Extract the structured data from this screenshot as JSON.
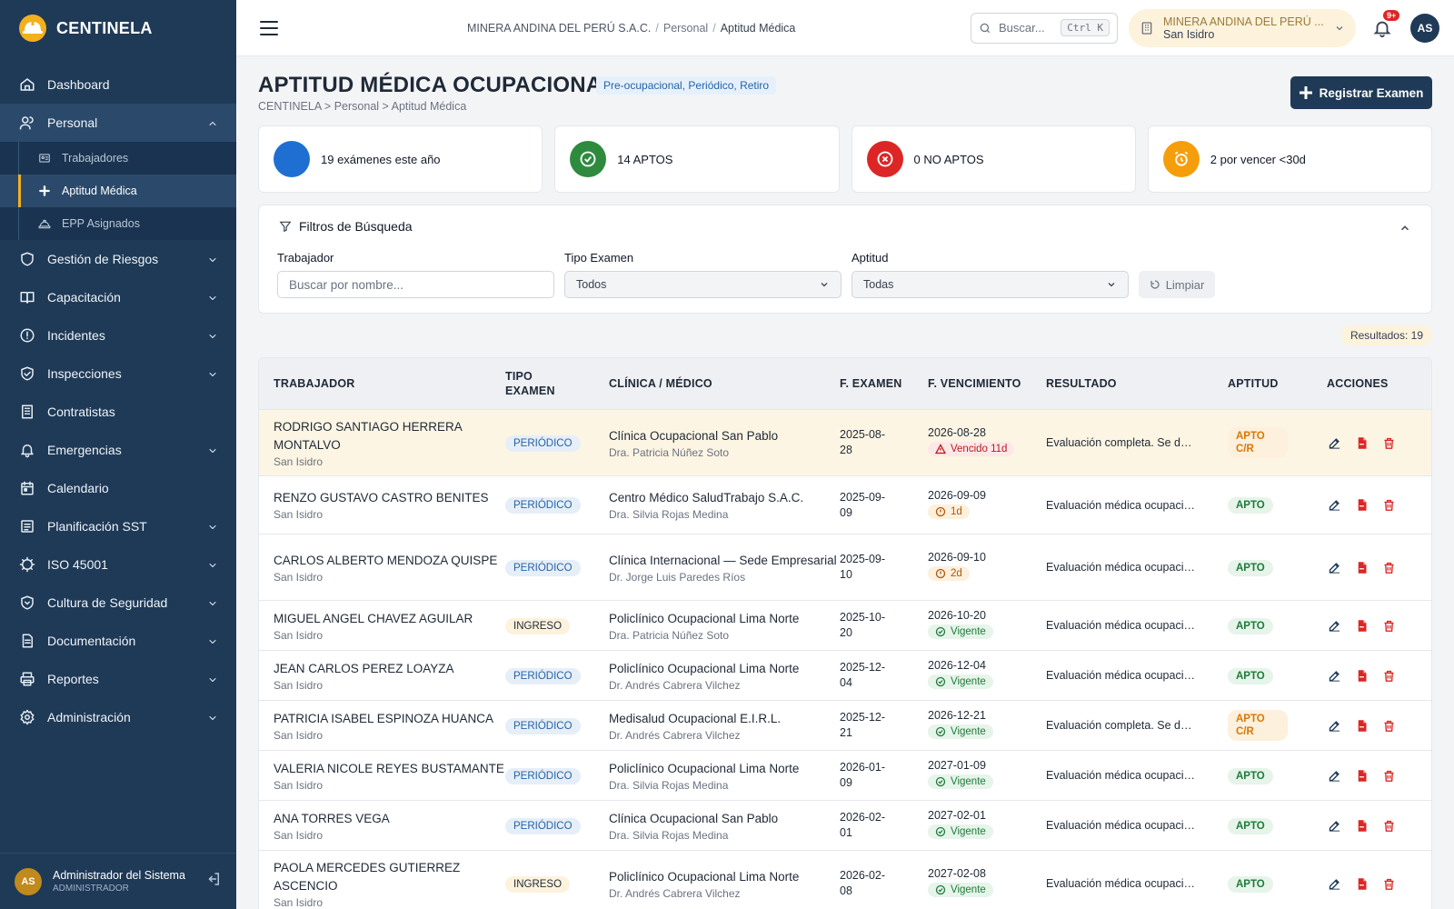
{
  "app": {
    "name": "CENTINELA"
  },
  "colors": {
    "sidebar": "#1f3a57",
    "accent": "#f2b01e",
    "ok": "#1e7b3a",
    "danger": "#dc2626",
    "warn": "#f59e0b",
    "info": "#1e6fd1"
  },
  "sidebar": {
    "items": [
      {
        "label": "Dashboard",
        "icon": "home-icon",
        "has_children": false
      },
      {
        "label": "Personal",
        "icon": "users-icon",
        "has_children": true,
        "open": true,
        "children": [
          {
            "label": "Trabajadores",
            "icon": "id-card-icon"
          },
          {
            "label": "Aptitud Médica",
            "icon": "plus-icon",
            "active": true
          },
          {
            "label": "EPP Asignados",
            "icon": "hard-hat-icon"
          }
        ]
      },
      {
        "label": "Gestión de Riesgos",
        "icon": "shield-icon",
        "has_children": true
      },
      {
        "label": "Capacitación",
        "icon": "book-icon",
        "has_children": true
      },
      {
        "label": "Incidentes",
        "icon": "alert-circle-icon",
        "has_children": true
      },
      {
        "label": "Inspecciones",
        "icon": "shield-check-icon",
        "has_children": true
      },
      {
        "label": "Contratistas",
        "icon": "building-icon",
        "has_children": false
      },
      {
        "label": "Emergencias",
        "icon": "bell-icon",
        "has_children": true
      },
      {
        "label": "Calendario",
        "icon": "calendar-icon",
        "has_children": false
      },
      {
        "label": "Planificación SST",
        "icon": "list-icon",
        "has_children": true
      },
      {
        "label": "ISO 45001",
        "icon": "gear-badge-icon",
        "has_children": true
      },
      {
        "label": "Cultura de Seguridad",
        "icon": "shield-heart-icon",
        "has_children": true
      },
      {
        "label": "Documentación",
        "icon": "document-icon",
        "has_children": true
      },
      {
        "label": "Reportes",
        "icon": "printer-icon",
        "has_children": true
      },
      {
        "label": "Administración",
        "icon": "gear-icon",
        "has_children": true
      }
    ],
    "user": {
      "initials": "AS",
      "name": "Administrador del Sistema",
      "role": "ADMINISTRADOR"
    }
  },
  "topbar": {
    "breadcrumb": [
      "MINERA ANDINA DEL PERÚ S.A.C.",
      "Personal",
      "Aptitud Médica"
    ],
    "search_placeholder": "Buscar...",
    "search_shortcut": "Ctrl K",
    "company_name": "MINERA ANDINA DEL PERÚ ...",
    "company_location": "San Isidro",
    "notifications": "9+",
    "user_initials": "AS"
  },
  "page": {
    "title": "APTITUD MÉDICA OCUPACIONAL",
    "tag": "Pre-ocupacional, Periódico, Retiro",
    "subcrumb": "CENTINELA > Personal > Aptitud Médica",
    "primary_button": "Registrar Examen"
  },
  "stats": [
    {
      "text": "19 exámenes este año",
      "color": "#1e6fd1",
      "icon": "circle-icon"
    },
    {
      "text": "14 APTOS",
      "color": "#2e8b3e",
      "icon": "check-circle-icon"
    },
    {
      "text": "0 NO APTOS",
      "color": "#dc2626",
      "icon": "x-circle-icon"
    },
    {
      "text": "2 por vencer <30d",
      "color": "#f59e0b",
      "icon": "alarm-clock-icon"
    }
  ],
  "filters": {
    "title": "Filtros de Búsqueda",
    "worker_label": "Trabajador",
    "worker_placeholder": "Buscar por nombre...",
    "type_label": "Tipo Examen",
    "type_value": "Todos",
    "aptitude_label": "Aptitud",
    "aptitude_value": "Todas",
    "clear_label": "Limpiar"
  },
  "results": "Resultados: 19",
  "table": {
    "headers": [
      "TRABAJADOR",
      "TIPO EXAMEN",
      "CLÍNICA / MÉDICO",
      "F. EXAMEN",
      "F. VENCIMIENTO",
      "RESULTADO",
      "APTITUD",
      "ACCIONES"
    ],
    "rows": [
      {
        "name": "RODRIGO SANTIAGO HERRERA MONTALVO",
        "loc": "San Isidro",
        "type": "PERIÓDICO",
        "clinic": "Clínica Ocupacional San Pablo",
        "doctor": "Dra. Patricia Núñez Soto",
        "exam_date": "2025-08-28",
        "exp_date": "2026-08-28",
        "status": "Vencido 11d",
        "status_kind": "err",
        "result": "Evaluación completa. Se decl...",
        "aptitude": "APTO C/R",
        "apt_kind": "cr",
        "highlight": true
      },
      {
        "name": "RENZO GUSTAVO CASTRO BENITES",
        "loc": "San Isidro",
        "type": "PERIÓDICO",
        "clinic": "Centro Médico SaludTrabajo S.A.C.",
        "doctor": "Dra. Silvia Rojas Medina",
        "exam_date": "2025-09-09",
        "exp_date": "2026-09-09",
        "status": "1d",
        "status_kind": "warn",
        "result": "Evaluación médica ocupacion...",
        "aptitude": "APTO",
        "apt_kind": "ok"
      },
      {
        "name": "CARLOS ALBERTO MENDOZA QUISPE",
        "loc": "San Isidro",
        "type": "PERIÓDICO",
        "clinic": "Clínica Internacional — Sede Empresarial",
        "doctor": "Dr. Jorge Luis Paredes Ríos",
        "exam_date": "2025-09-10",
        "exp_date": "2026-09-10",
        "status": "2d",
        "status_kind": "warn",
        "result": "Evaluación médica ocupacion...",
        "aptitude": "APTO",
        "apt_kind": "ok"
      },
      {
        "name": "MIGUEL ANGEL CHAVEZ AGUILAR",
        "loc": "San Isidro",
        "type": "INGRESO",
        "clinic": "Policlínico Ocupacional Lima Norte",
        "doctor": "Dra. Patricia Núñez Soto",
        "exam_date": "2025-10-20",
        "exp_date": "2026-10-20",
        "status": "Vigente",
        "status_kind": "ok",
        "result": "Evaluación médica ocupacion...",
        "aptitude": "APTO",
        "apt_kind": "ok"
      },
      {
        "name": "JEAN CARLOS PEREZ LOAYZA",
        "loc": "San Isidro",
        "type": "PERIÓDICO",
        "clinic": "Policlínico Ocupacional Lima Norte",
        "doctor": "Dr. Andrés Cabrera Vilchez",
        "exam_date": "2025-12-04",
        "exp_date": "2026-12-04",
        "status": "Vigente",
        "status_kind": "ok",
        "result": "Evaluación médica ocupacion...",
        "aptitude": "APTO",
        "apt_kind": "ok"
      },
      {
        "name": "PATRICIA ISABEL ESPINOZA HUANCA",
        "loc": "San Isidro",
        "type": "PERIÓDICO",
        "clinic": "Medisalud Ocupacional E.I.R.L.",
        "doctor": "Dr. Andrés Cabrera Vilchez",
        "exam_date": "2025-12-21",
        "exp_date": "2026-12-21",
        "status": "Vigente",
        "status_kind": "ok",
        "result": "Evaluación completa. Se decl...",
        "aptitude": "APTO C/R",
        "apt_kind": "cr"
      },
      {
        "name": "VALERIA NICOLE REYES BUSTAMANTE",
        "loc": "San Isidro",
        "type": "PERIÓDICO",
        "clinic": "Policlínico Ocupacional Lima Norte",
        "doctor": "Dra. Silvia Rojas Medina",
        "exam_date": "2026-01-09",
        "exp_date": "2027-01-09",
        "status": "Vigente",
        "status_kind": "ok",
        "result": "Evaluación médica ocupacion...",
        "aptitude": "APTO",
        "apt_kind": "ok"
      },
      {
        "name": "ANA TORRES VEGA",
        "loc": "San Isidro",
        "type": "PERIÓDICO",
        "clinic": "Clínica Ocupacional San Pablo",
        "doctor": "Dra. Silvia Rojas Medina",
        "exam_date": "2026-02-01",
        "exp_date": "2027-02-01",
        "status": "Vigente",
        "status_kind": "ok",
        "result": "Evaluación médica ocupacion...",
        "aptitude": "APTO",
        "apt_kind": "ok"
      },
      {
        "name": "PAOLA MERCEDES GUTIERREZ ASCENCIO",
        "loc": "San Isidro",
        "type": "INGRESO",
        "clinic": "Policlínico Ocupacional Lima Norte",
        "doctor": "Dr. Andrés Cabrera Vilchez",
        "exam_date": "2026-02-08",
        "exp_date": "2027-02-08",
        "status": "Vigente",
        "status_kind": "ok",
        "result": "Evaluación médica ocupacion...",
        "aptitude": "APTO",
        "apt_kind": "ok"
      }
    ]
  }
}
